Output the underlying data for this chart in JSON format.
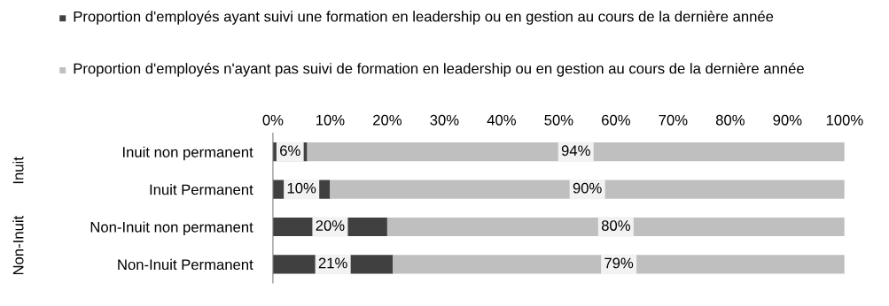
{
  "chart_data": {
    "type": "bar",
    "orientation": "horizontal",
    "stacked": true,
    "legend": "top",
    "grid": false,
    "categories": [
      "Inuit non permanent",
      "Inuit Permanent",
      "Non-Inuit non permanent",
      "Non-Inuit Permanent"
    ],
    "annotations": [
      "Inuit",
      "Non-Inuit"
    ],
    "series": [
      {
        "name": "Proportion d'employés ayant suivi une formation en leadership ou en gestion au cours de la dernière année",
        "color": "#404040",
        "values": [
          6,
          10,
          20,
          21
        ],
        "value_labels": [
          "6%",
          "10%",
          "20%",
          "21%"
        ]
      },
      {
        "name": "Proportion d'employés n'ayant pas suivi de formation en leadership ou en gestion au cours de la dernière année",
        "color": "#bfbfbf",
        "values": [
          94,
          90,
          80,
          79
        ],
        "value_labels": [
          "94%",
          "90%",
          "80%",
          "79%"
        ]
      }
    ],
    "xlim": [
      0,
      100
    ],
    "xticks": [
      {
        "value": 0,
        "label": "0%"
      },
      {
        "value": 10,
        "label": "10%"
      },
      {
        "value": 20,
        "label": "20%"
      },
      {
        "value": 30,
        "label": "30%"
      },
      {
        "value": 40,
        "label": "40%"
      },
      {
        "value": 50,
        "label": "50%"
      },
      {
        "value": 60,
        "label": "60%"
      },
      {
        "value": 70,
        "label": "70%"
      },
      {
        "value": 80,
        "label": "80%"
      },
      {
        "value": 90,
        "label": "90%"
      },
      {
        "value": 100,
        "label": "100%"
      }
    ]
  }
}
